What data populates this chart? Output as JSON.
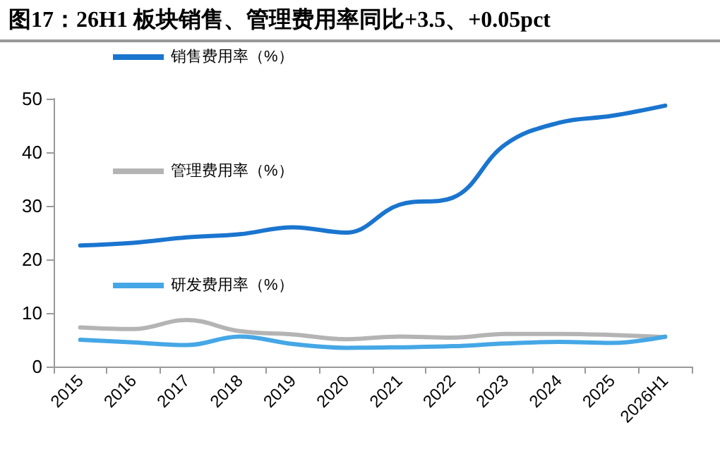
{
  "chart_data": {
    "type": "line",
    "title": "图17：26H1 板块销售、管理费用率同比+3.5、+0.05pct",
    "categories": [
      "2015",
      "2016",
      "2017",
      "2018",
      "2019",
      "2020",
      "2021",
      "2022",
      "2023",
      "2024",
      "2025",
      "2026H1"
    ],
    "series": [
      {
        "name": "销售费用率（%）",
        "color": "#1a75cf",
        "values": [
          22.6,
          23.1,
          24.1,
          24.7,
          26.0,
          25.0,
          30.2,
          31.5,
          41.5,
          45.5,
          46.8,
          48.7
        ]
      },
      {
        "name": "管理费用率（%）",
        "color": "#b4b4b4",
        "values": [
          7.3,
          7.0,
          8.7,
          6.6,
          6.0,
          5.1,
          5.6,
          5.4,
          6.1,
          6.1,
          5.9,
          5.5
        ]
      },
      {
        "name": "研发费用率（%）",
        "color": "#45a7e6",
        "values": [
          5.0,
          4.5,
          4.0,
          5.6,
          4.2,
          3.5,
          3.6,
          3.8,
          4.3,
          4.6,
          4.4,
          5.6
        ]
      }
    ],
    "ylim": [
      0,
      50
    ],
    "yticks": [
      0,
      10,
      20,
      30,
      40,
      50
    ],
    "grid": false,
    "legend": "top",
    "marker": "none",
    "line_style": "solid"
  }
}
